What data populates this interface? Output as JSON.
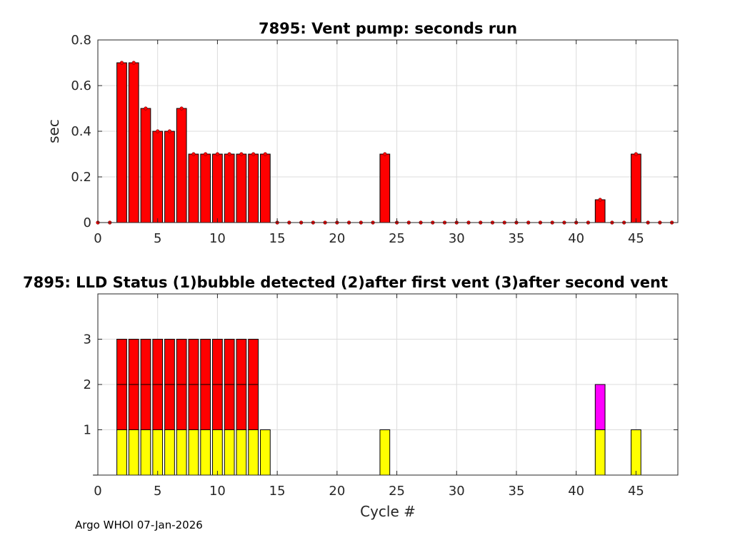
{
  "footer": "Argo WHOI 07-Jan-2026",
  "colors": {
    "bar": "#ff0000",
    "yellow": "#ffff00",
    "magenta": "#ff00ff",
    "red": "#ff0000",
    "grid": "#dcdcdc"
  },
  "chart_data": [
    {
      "type": "bar",
      "title": "7895: Vent pump: seconds run",
      "xlabel": "",
      "ylabel": "sec",
      "xlim": [
        0,
        48.5
      ],
      "ylim": [
        0,
        0.8
      ],
      "xticks": [
        "0",
        "5",
        "10",
        "15",
        "20",
        "25",
        "30",
        "35",
        "40",
        "45"
      ],
      "yticks": [
        "0",
        "0.2",
        "0.4",
        "0.6",
        "0.8"
      ],
      "grid": true,
      "x": [
        0,
        1,
        2,
        3,
        4,
        5,
        6,
        7,
        8,
        9,
        10,
        11,
        12,
        13,
        14,
        15,
        16,
        17,
        18,
        19,
        20,
        21,
        22,
        23,
        24,
        25,
        26,
        27,
        28,
        29,
        30,
        31,
        32,
        33,
        34,
        35,
        36,
        37,
        38,
        39,
        40,
        41,
        42,
        43,
        44,
        45,
        46,
        47,
        48
      ],
      "values": [
        0,
        0,
        0.7,
        0.7,
        0.5,
        0.4,
        0.4,
        0.5,
        0.3,
        0.3,
        0.3,
        0.3,
        0.3,
        0.3,
        0.3,
        0,
        0,
        0,
        0,
        0,
        0,
        0,
        0,
        0,
        0.3,
        0,
        0,
        0,
        0,
        0,
        0,
        0,
        0,
        0,
        0,
        0,
        0,
        0,
        0,
        0,
        0,
        0,
        0.1,
        0,
        0,
        0.3,
        0,
        0,
        0
      ]
    },
    {
      "type": "bar",
      "stacked": true,
      "title": "7895: LLD Status   (1)bubble detected   (2)after first vent  (3)after second vent",
      "xlabel": "Cycle #",
      "ylabel": "",
      "xlim": [
        0,
        48.5
      ],
      "ylim": [
        0,
        4
      ],
      "xticks": [
        "0",
        "5",
        "10",
        "15",
        "20",
        "25",
        "30",
        "35",
        "40",
        "45"
      ],
      "yticks": [
        "1",
        "2",
        "3"
      ],
      "grid": true,
      "x": [
        0,
        1,
        2,
        3,
        4,
        5,
        6,
        7,
        8,
        9,
        10,
        11,
        12,
        13,
        14,
        15,
        16,
        17,
        18,
        19,
        20,
        21,
        22,
        23,
        24,
        25,
        26,
        27,
        28,
        29,
        30,
        31,
        32,
        33,
        34,
        35,
        36,
        37,
        38,
        39,
        40,
        41,
        42,
        43,
        44,
        45,
        46,
        47,
        48
      ],
      "values": [
        0,
        0,
        3,
        3,
        3,
        3,
        3,
        3,
        3,
        3,
        3,
        3,
        3,
        3,
        1,
        0,
        0,
        0,
        0,
        0,
        0,
        0,
        0,
        0,
        1,
        0,
        0,
        0,
        0,
        0,
        0,
        0,
        0,
        0,
        0,
        0,
        0,
        0,
        0,
        0,
        0,
        0,
        2,
        0,
        0,
        1,
        0,
        0,
        0
      ]
    }
  ]
}
